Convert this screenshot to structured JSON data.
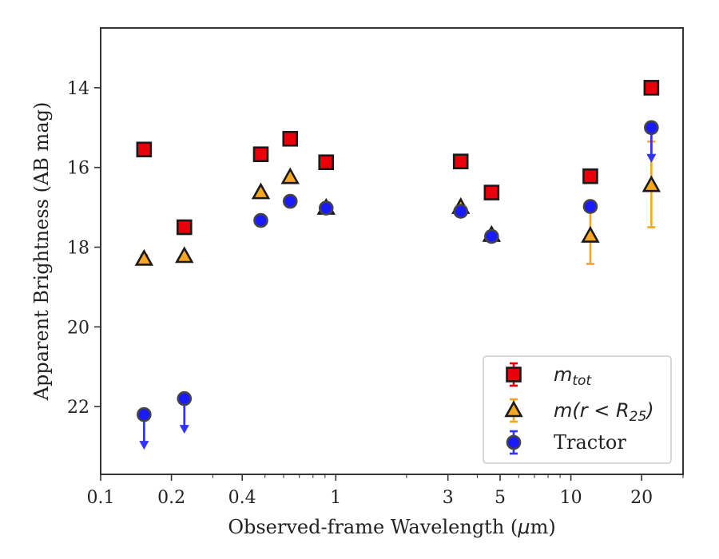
{
  "chart_data": {
    "type": "scatter",
    "title": "",
    "xlabel_prefix": "Observed-frame Wavelength (",
    "xlabel_mu": "μ",
    "xlabel_suffix": "m)",
    "ylabel": "Apparent Brightness (AB mag)",
    "x_scale": "log",
    "xlim": [
      0.1,
      30
    ],
    "ylim": [
      23.7,
      12.5
    ],
    "y_inverted": true,
    "grid": false,
    "legend_position": "lower-right",
    "x_ticks": [
      {
        "value": 0.1,
        "label": "0.1"
      },
      {
        "value": 0.2,
        "label": "0.2"
      },
      {
        "value": 0.4,
        "label": "0.4"
      },
      {
        "value": 1,
        "label": "1"
      },
      {
        "value": 3,
        "label": "3"
      },
      {
        "value": 5,
        "label": "5"
      },
      {
        "value": 10,
        "label": "10"
      },
      {
        "value": 20,
        "label": "20"
      }
    ],
    "y_ticks": [
      {
        "value": 14,
        "label": "14"
      },
      {
        "value": 16,
        "label": "16"
      },
      {
        "value": 18,
        "label": "18"
      },
      {
        "value": 20,
        "label": "20"
      },
      {
        "value": 22,
        "label": "22"
      }
    ],
    "series": [
      {
        "key": "mtot",
        "legend_main": "m",
        "legend_sub": "tot",
        "marker": "square",
        "color": "#e8000b",
        "err_color": "#e8000b",
        "points": [
          {
            "x": 0.153,
            "y": 15.55
          },
          {
            "x": 0.227,
            "y": 17.5
          },
          {
            "x": 0.48,
            "y": 15.67
          },
          {
            "x": 0.64,
            "y": 15.28
          },
          {
            "x": 0.91,
            "y": 15.87
          },
          {
            "x": 3.4,
            "y": 15.85
          },
          {
            "x": 4.6,
            "y": 16.63
          },
          {
            "x": 12.1,
            "y": 16.22
          },
          {
            "x": 22.0,
            "y": 14.0,
            "err": 0.1
          }
        ]
      },
      {
        "key": "mr25",
        "legend_main": "m(r < R",
        "legend_sub": "25",
        "legend_close": ")",
        "marker": "triangle",
        "color": "#f5a623",
        "err_color": "#f5a623",
        "points": [
          {
            "x": 0.153,
            "y": 18.3,
            "err": 0.1
          },
          {
            "x": 0.227,
            "y": 18.23
          },
          {
            "x": 0.48,
            "y": 16.63
          },
          {
            "x": 0.64,
            "y": 16.25
          },
          {
            "x": 0.91,
            "y": 17.02
          },
          {
            "x": 3.4,
            "y": 17.0
          },
          {
            "x": 4.6,
            "y": 17.7
          },
          {
            "x": 12.1,
            "y": 17.72,
            "err": 0.7
          },
          {
            "x": 22.0,
            "y": 16.45,
            "err_up": 1.1,
            "err_down": 1.05
          }
        ]
      },
      {
        "key": "tractor",
        "legend_main": "Tractor",
        "marker": "circle",
        "color": "#1a1aff",
        "err_color": "#3333ff",
        "points": [
          {
            "x": 0.153,
            "y": 22.2,
            "upper_limit": true
          },
          {
            "x": 0.227,
            "y": 21.8,
            "upper_limit": true
          },
          {
            "x": 0.48,
            "y": 17.33
          },
          {
            "x": 0.64,
            "y": 16.85
          },
          {
            "x": 0.91,
            "y": 17.02
          },
          {
            "x": 3.4,
            "y": 17.1
          },
          {
            "x": 4.6,
            "y": 17.73
          },
          {
            "x": 12.1,
            "y": 16.98
          },
          {
            "x": 22.0,
            "y": 15.0,
            "upper_limit": true
          }
        ]
      }
    ]
  }
}
